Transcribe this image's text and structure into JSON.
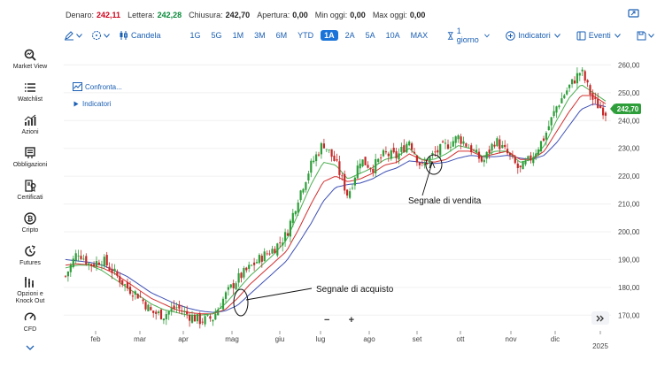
{
  "quote_bar": {
    "bid_label": "Denaro:",
    "bid_value": "242,11",
    "ask_label": "Lettera:",
    "ask_value": "242,28",
    "close_label": "Chiusura:",
    "close_value": "242,70",
    "open_label": "Apertura:",
    "open_value": "0,00",
    "low_label": "Min oggi:",
    "low_value": "0,00",
    "high_label": "Max oggi:",
    "high_value": "0,00"
  },
  "toolbar": {
    "chart_type": "Candela",
    "ranges": [
      "1G",
      "5G",
      "1M",
      "3M",
      "6M",
      "YTD",
      "1A",
      "2A",
      "5A",
      "10A",
      "MAX"
    ],
    "active_range": "1A",
    "interval": "1 giorno",
    "indicators": "Indicatori",
    "events": "Eventi"
  },
  "sidebar": {
    "items": [
      {
        "label": "Market View",
        "icon": "market-view-icon"
      },
      {
        "label": "Watchlist",
        "icon": "list-icon"
      },
      {
        "label": "Azioni",
        "icon": "stocks-icon"
      },
      {
        "label": "Obbligazioni",
        "icon": "bonds-icon"
      },
      {
        "label": "Certificati",
        "icon": "certificates-icon"
      },
      {
        "label": "Cripto",
        "icon": "bitcoin-icon"
      },
      {
        "label": "Futures",
        "icon": "futures-icon"
      },
      {
        "label": "Opzioni e Knock Out",
        "icon": "options-icon"
      },
      {
        "label": "CFD",
        "icon": "cfd-icon"
      }
    ]
  },
  "chart_links": {
    "compare": "Confronta...",
    "indicators": "Indicatori"
  },
  "annotations": {
    "buy_signal": "Segnale di acquisto",
    "sell_signal": "Segnale di vendita"
  },
  "last_price": "242,70",
  "colors": {
    "accent": "#1a73d9",
    "up": "#2e9e3a",
    "down": "#c62828",
    "ma_fast": "#4caf50",
    "ma_mid": "#d32f2f",
    "ma_slow": "#3f51b5"
  },
  "chart_data": {
    "type": "candlestick",
    "x_labels": [
      "feb",
      "mar",
      "apr",
      "mag",
      "giu",
      "lug",
      "ago",
      "set",
      "ott",
      "nov",
      "dic",
      "2025"
    ],
    "y_ticks": [
      "260,00",
      "250,00",
      "240,00",
      "230,00",
      "220,00",
      "210,00",
      "200,00",
      "190,00",
      "180,00",
      "170,00"
    ],
    "ylim": [
      165,
      263
    ],
    "y_axis_side": "right",
    "close_path": [
      184,
      193,
      188,
      190,
      185,
      180,
      177,
      171,
      170,
      173,
      170,
      168,
      169,
      177,
      183,
      187,
      191,
      194,
      199,
      213,
      224,
      232,
      225,
      213,
      226,
      223,
      228,
      227,
      233,
      223,
      228,
      231,
      234,
      230,
      225,
      233,
      228,
      222,
      227,
      234,
      245,
      252,
      258,
      247,
      243
    ],
    "ma_fast_path": [
      187,
      188,
      188,
      186,
      183,
      180,
      177,
      174,
      172,
      171,
      170,
      170,
      170.5,
      174,
      179,
      184,
      188,
      192,
      197,
      207,
      217,
      225,
      224,
      219,
      221,
      223,
      226,
      227,
      230,
      226,
      226,
      228,
      231,
      230,
      227,
      229,
      229,
      225,
      226,
      231,
      240,
      248,
      253,
      250,
      247
    ],
    "ma_mid_path": [
      188,
      188.5,
      188,
      187,
      185,
      182,
      179,
      176,
      174,
      172,
      171,
      170.5,
      170.5,
      172,
      176,
      181,
      185,
      189,
      193,
      201,
      210,
      218,
      220,
      218,
      219,
      221,
      224,
      225,
      228,
      226,
      225,
      226,
      229,
      229,
      227,
      228,
      229,
      226,
      226,
      229,
      236,
      243,
      249,
      249,
      246
    ],
    "ma_slow_path": [
      190,
      189.5,
      189,
      188,
      186,
      184,
      181,
      178,
      176,
      174,
      172.5,
      171.5,
      171,
      171.5,
      173.5,
      177.5,
      181.5,
      185.5,
      189.5,
      196,
      203,
      211,
      216,
      217,
      217.5,
      219,
      221.5,
      223,
      225.5,
      225,
      224.5,
      225,
      226.5,
      227.5,
      227,
      227,
      227.5,
      226.5,
      226,
      227.5,
      232,
      238,
      244,
      246,
      245
    ],
    "series": [
      {
        "name": "",
        "kind": "candles"
      },
      {
        "name": "",
        "kind": "moving-average",
        "color": "green"
      },
      {
        "name": "",
        "kind": "moving-average",
        "color": "red"
      },
      {
        "name": "",
        "kind": "moving-average",
        "color": "blue"
      }
    ]
  }
}
